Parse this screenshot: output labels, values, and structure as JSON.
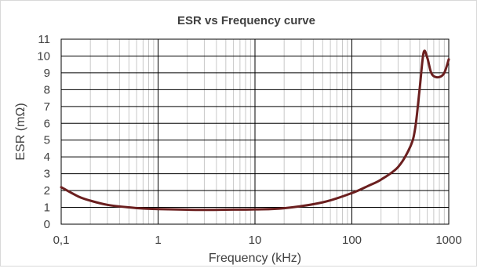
{
  "chart_data": {
    "type": "line",
    "title": "ESR vs Frequency curve",
    "xlabel": "Frequency (kHz)",
    "ylabel": "ESR (mΩ)",
    "x_scale": "log",
    "xlim": [
      0.1,
      1000
    ],
    "ylim": [
      0,
      11
    ],
    "x_ticks": [
      "0,1",
      "1",
      "10",
      "100",
      "1000"
    ],
    "y_ticks": [
      "0",
      "1",
      "2",
      "3",
      "4",
      "5",
      "6",
      "7",
      "8",
      "9",
      "10",
      "11"
    ],
    "grid": true,
    "legend": "none",
    "line_color": "#6b1f1f",
    "series": [
      {
        "x": [
          0.1,
          0.15,
          0.2,
          0.3,
          0.5,
          0.7,
          1,
          2,
          3,
          5,
          10,
          20,
          50,
          100,
          150,
          200,
          300,
          400,
          450,
          500,
          550,
          600,
          650,
          700,
          800,
          900,
          1000
        ],
        "values": [
          2.2,
          1.65,
          1.4,
          1.15,
          1.0,
          0.93,
          0.9,
          0.86,
          0.85,
          0.86,
          0.88,
          0.95,
          1.3,
          1.85,
          2.3,
          2.65,
          3.4,
          4.6,
          5.7,
          8.0,
          10.2,
          9.9,
          9.1,
          8.8,
          8.75,
          9.0,
          9.8
        ]
      }
    ]
  }
}
